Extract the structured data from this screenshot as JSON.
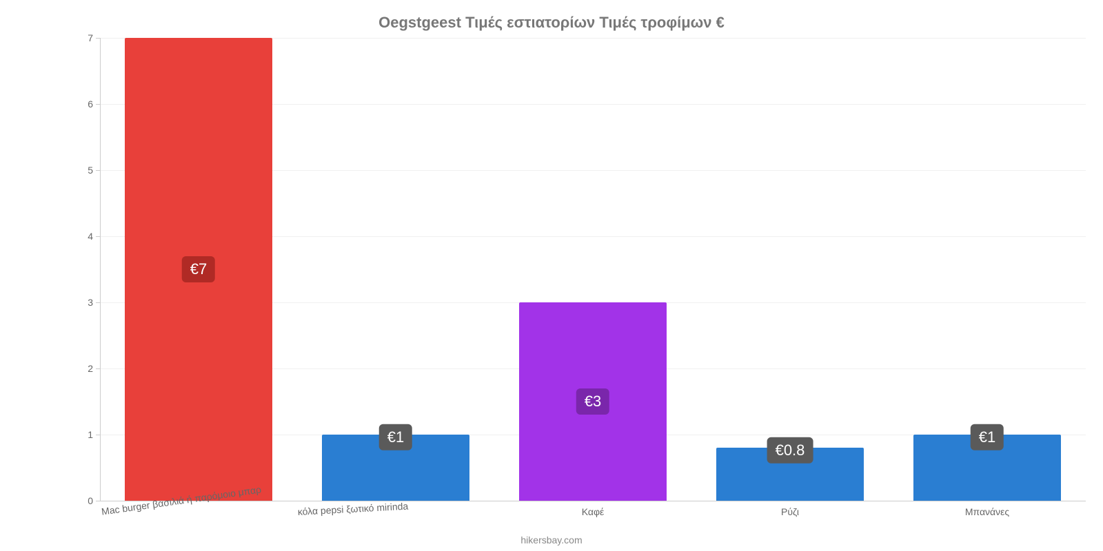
{
  "chart": {
    "type": "bar",
    "title": "Oegstgeest Τιμές εστιατορίων Τιμές τροφίμων €",
    "title_fontsize": 22,
    "title_color": "#777777",
    "background_color": "#ffffff",
    "grid_color": "#f0f0f0",
    "axis_color": "#cccccc",
    "tick_label_color": "#666666",
    "tick_label_fontsize": 14,
    "ylim": [
      0,
      7
    ],
    "yticks": [
      0,
      1,
      2,
      3,
      4,
      5,
      6,
      7
    ],
    "bar_width_ratio": 0.75,
    "categories": [
      "Mac burger βασιλιά ή παρόμοιο μπαρ",
      "κόλα pepsi ξωτικό mirinda",
      "Καφέ",
      "Ρύζι",
      "Μπανάνες"
    ],
    "values": [
      7,
      1,
      3,
      0.8,
      1
    ],
    "value_labels": [
      "€7",
      "€1",
      "€3",
      "€0.8",
      "€1"
    ],
    "bar_colors": [
      "#e8403a",
      "#2a7ed2",
      "#a233e8",
      "#2a7ed2",
      "#2a7ed2"
    ],
    "badge_colors": [
      "#b02a25",
      "#5a5a5a",
      "#7a26ab",
      "#5a5a5a",
      "#5a5a5a"
    ],
    "x_label_rotations": [
      -8,
      -3,
      0,
      0,
      0
    ],
    "attribution": "hikersbay.com",
    "attribution_color": "#888888"
  }
}
